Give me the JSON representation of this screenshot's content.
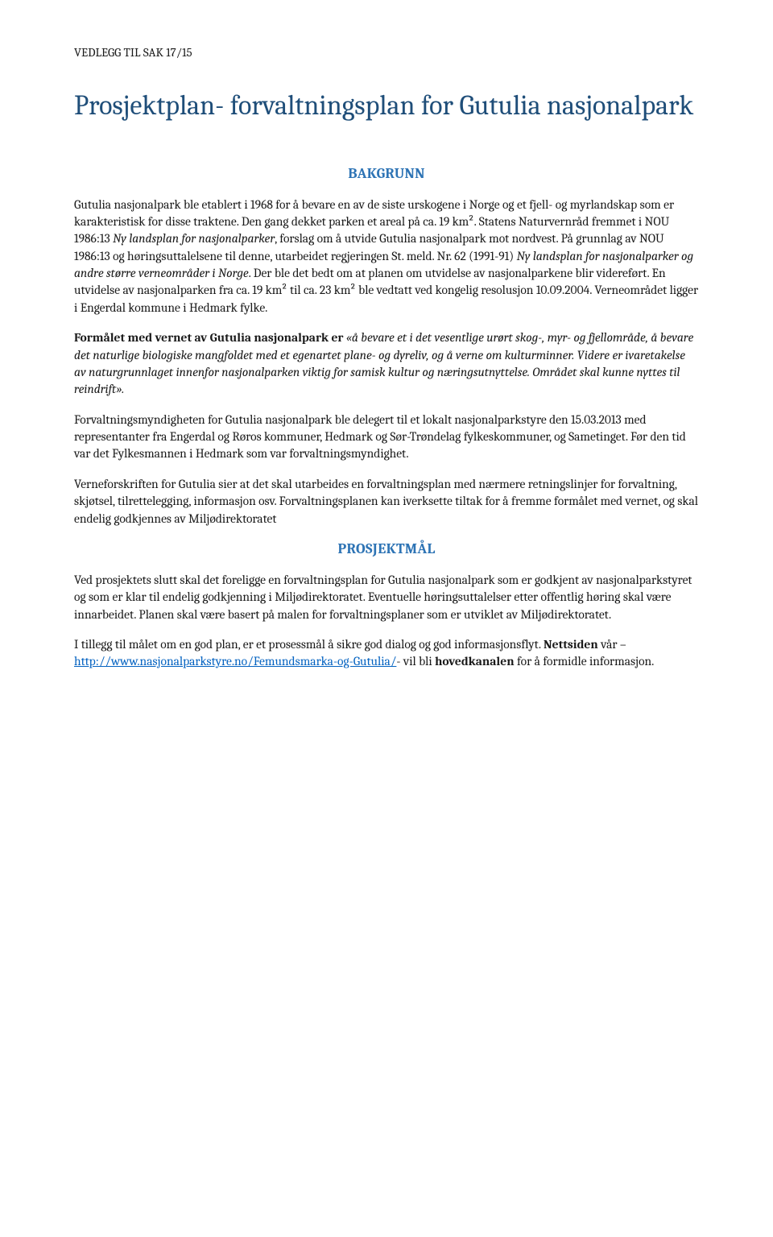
{
  "colors": {
    "title_color": "#1f4e79",
    "section_heading_color": "#2e74b5",
    "body_text_color": "#1a1a1a",
    "link_color": "#0563c1",
    "background": "#ffffff"
  },
  "fonts": {
    "body_family": "Cambria, Georgia, serif",
    "title_size_pt": 26,
    "section_size_pt": 14,
    "body_size_pt": 12
  },
  "header_ref": "VEDLEGG TIL SAK 17/15",
  "title": "Prosjektplan- forvaltningsplan for Gutulia nasjonalpark",
  "sections": {
    "bakgrunn": {
      "heading": "BAKGRUNN",
      "p1_a": "Gutulia nasjonalpark ble etablert i 1968 for å bevare en av de siste urskogene i Norge og et fjell- og myrlandskap som er karakteristisk for disse traktene. Den gang dekket parken et areal på ca. 19 km². Statens Naturvernråd fremmet i NOU 1986:13 ",
      "p1_i1": "Ny landsplan for nasjonalparker",
      "p1_b": ", forslag om å utvide Gutulia nasjonalpark mot nordvest. På grunnlag av NOU 1986:13 og høringsuttalelsene til denne, utarbeidet regjeringen St. meld. Nr. 62 (1991-91) ",
      "p1_i2": "Ny landsplan for nasjonalparker og andre større verneområder i Norge",
      "p1_c": ". Der ble det bedt om at planen om utvidelse av nasjonalparkene blir videreført. En utvidelse av nasjonalparken fra ca. 19 km² til ca. 23 km² ble vedtatt ved kongelig resolusjon 10.09.2004. Verneområdet ligger i Engerdal kommune i Hedmark fylke.",
      "p2_b": "Formålet med vernet av Gutulia nasjonalpark er ",
      "p2_i": "«å bevare et i det vesentlige urørt skog-, myr- og fjellområde, å bevare det naturlige biologiske mangfoldet med et egenartet plane- og dyreliv, og å verne om kulturminner. Videre er ivaretakelse av naturgrunnlaget innenfor nasjonalparken viktig for samisk kultur og næringsutnyttelse. Området skal kunne nyttes til reindrift».",
      "p3": "Forvaltningsmyndigheten for Gutulia nasjonalpark ble delegert til et lokalt nasjonalparkstyre den 15.03.2013 med representanter fra Engerdal og Røros kommuner, Hedmark og Sør-Trøndelag fylkeskommuner, og Sametinget. Før den tid var det Fylkesmannen i Hedmark som var forvaltningsmyndighet.",
      "p4": "Verneforskriften for Gutulia sier at det skal utarbeides en forvaltningsplan med nærmere retningslinjer for forvaltning, skjøtsel, tilrettelegging, informasjon osv. Forvaltningsplanen kan iverksette tiltak for å fremme formålet med vernet, og skal endelig godkjennes av Miljødirektoratet"
    },
    "prosjektmal": {
      "heading": "PROSJEKTMÅL",
      "p1": "Ved prosjektets slutt skal det foreligge en forvaltningsplan for Gutulia nasjonalpark som er godkjent av nasjonalparkstyret og som er klar til endelig godkjenning i Miljødirektoratet. Eventuelle høringsuttalelser etter offentlig høring skal være innarbeidet. Planen skal være basert på malen for forvaltningsplaner som er utviklet av Miljødirektoratet.",
      "p2_a": "I tillegg til målet om en god plan, er et prosessmål å sikre god dialog og god informasjonsflyt. ",
      "p2_b1": "Nettsiden",
      "p2_b2": " vår – ",
      "p2_link": "http://www.nasjonalparkstyre.no/Femundsmarka-og-Gutulia/",
      "p2_c": "- vil bli ",
      "p2_b3": "hovedkanalen",
      "p2_d": " for å formidle informasjon."
    }
  }
}
